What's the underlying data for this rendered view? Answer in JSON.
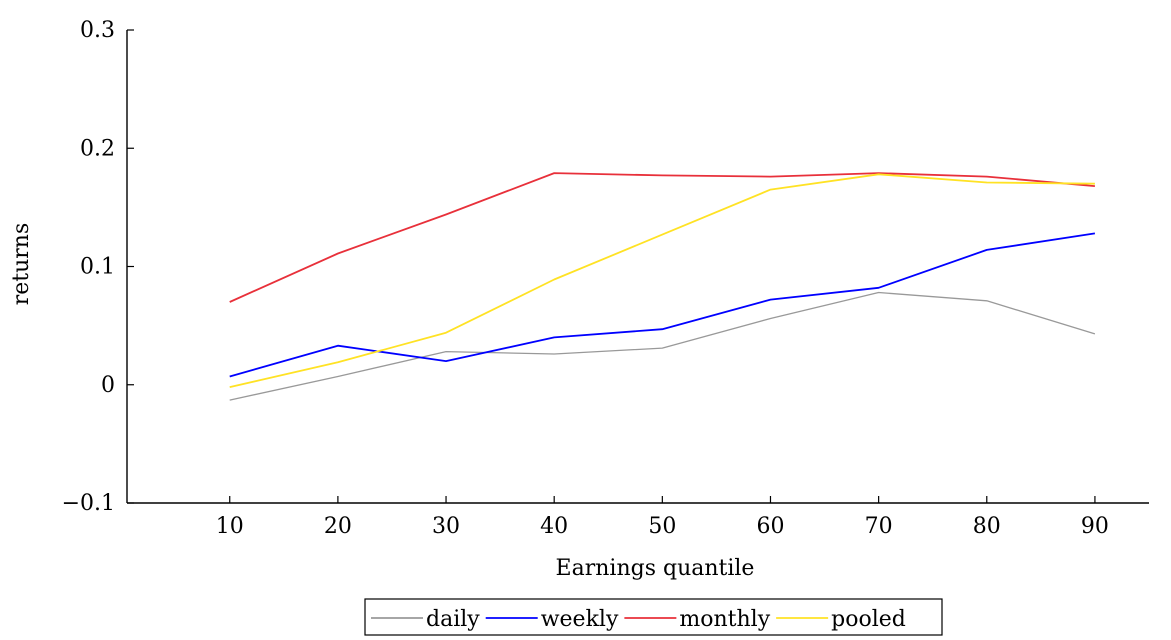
{
  "chart_data": {
    "type": "line",
    "title": "",
    "xlabel": "Earnings quantile",
    "ylabel": "returns",
    "x": [
      10,
      20,
      30,
      40,
      50,
      60,
      70,
      80,
      90
    ],
    "xlim": [
      0.5,
      95
    ],
    "ylim": [
      -0.1,
      0.3
    ],
    "xticks": [
      10,
      20,
      30,
      40,
      50,
      60,
      70,
      80,
      90
    ],
    "xtick_labels": [
      "10",
      "20",
      "30",
      "40",
      "50",
      "60",
      "70",
      "80",
      "90"
    ],
    "yticks": [
      -0.1,
      0,
      0.1,
      0.2,
      0.3
    ],
    "ytick_labels": [
      "−0.1",
      "0",
      "0.1",
      "0.2",
      "0.3"
    ],
    "grid": false,
    "legend_position": "bottom-center",
    "series": [
      {
        "name": "daily",
        "color": "#999999",
        "values": [
          -0.013,
          0.007,
          0.028,
          0.026,
          0.031,
          0.056,
          0.078,
          0.071,
          0.043
        ]
      },
      {
        "name": "weekly",
        "color": "#0000ff",
        "values": [
          0.007,
          0.033,
          0.02,
          0.04,
          0.047,
          0.072,
          0.082,
          0.114,
          0.128
        ]
      },
      {
        "name": "monthly",
        "color": "#e8303a",
        "values": [
          0.07,
          0.111,
          0.144,
          0.179,
          0.177,
          0.176,
          0.179,
          0.176,
          0.168
        ]
      },
      {
        "name": "pooled",
        "color": "#ffe224",
        "values": [
          -0.002,
          0.019,
          0.044,
          0.089,
          0.127,
          0.165,
          0.178,
          0.171,
          0.17
        ]
      }
    ]
  }
}
